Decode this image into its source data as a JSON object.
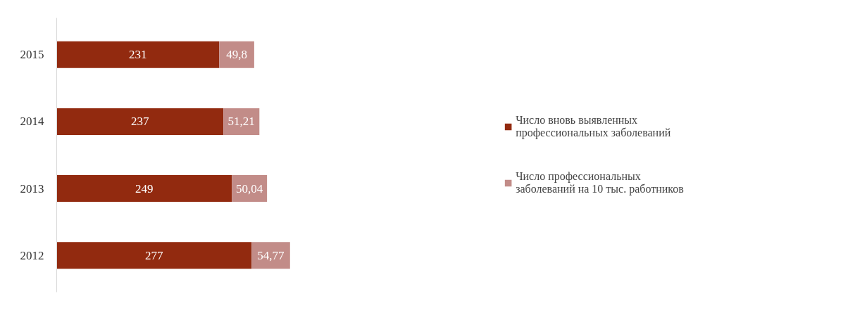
{
  "chart_data": {
    "type": "bar",
    "orientation": "horizontal",
    "stacked": true,
    "categories": [
      "2015",
      "2014",
      "2013",
      "2012"
    ],
    "series": [
      {
        "name": "Число вновь выявленных профессиональных заболеваний",
        "color": "#922a0f",
        "values": [
          231,
          237,
          249,
          277
        ]
      },
      {
        "name": "Число профессиональных заболеваний на 10 тыс. работников",
        "color": "#c28c88",
        "values": [
          49.8,
          51.21,
          50.04,
          54.77
        ],
        "value_labels": [
          "49,8",
          "51,21",
          "50,04",
          "54,77"
        ]
      }
    ],
    "data_labels": true,
    "legend": "right",
    "tick_labels": "y",
    "grid": false
  }
}
